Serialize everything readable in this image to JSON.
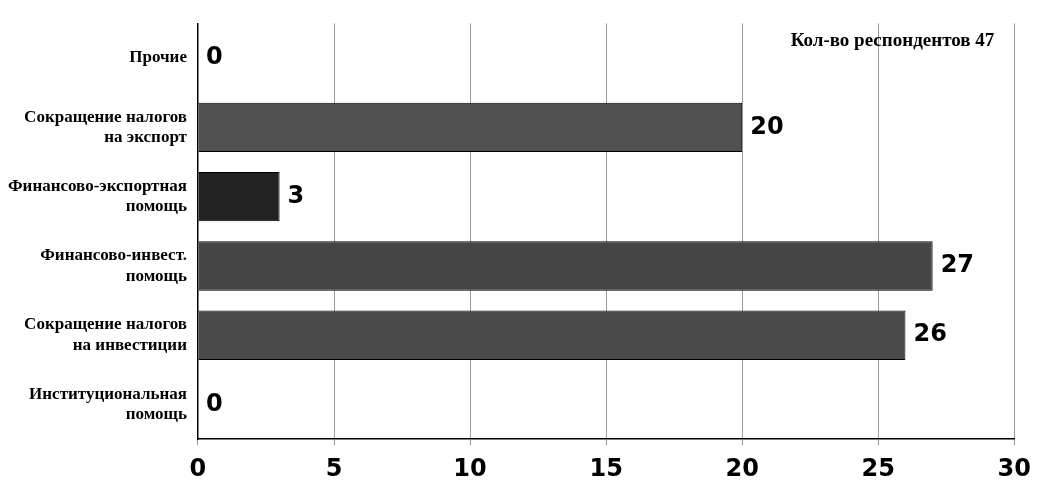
{
  "chart_data": {
    "type": "bar",
    "orientation": "horizontal",
    "categories": [
      "Прочие",
      "Сокращение налогов на экспорт",
      "Финансово-экспортная помощь",
      "Финансово-инвест. помощь",
      "Сокращение налогов на инвестиции",
      "Институциональная помощь"
    ],
    "values": [
      0,
      20,
      3,
      27,
      26,
      0
    ],
    "colors": [
      "#444444",
      "#505050",
      "#222222",
      "#454545",
      "#4a4a4a",
      "#444444"
    ],
    "xlim": [
      0,
      30
    ],
    "xticks": [
      0,
      5,
      10,
      15,
      20,
      25,
      30
    ],
    "grid": "x",
    "legend": false,
    "data_labels": true,
    "annotations": [
      "Кол-во респондентов 47"
    ]
  }
}
